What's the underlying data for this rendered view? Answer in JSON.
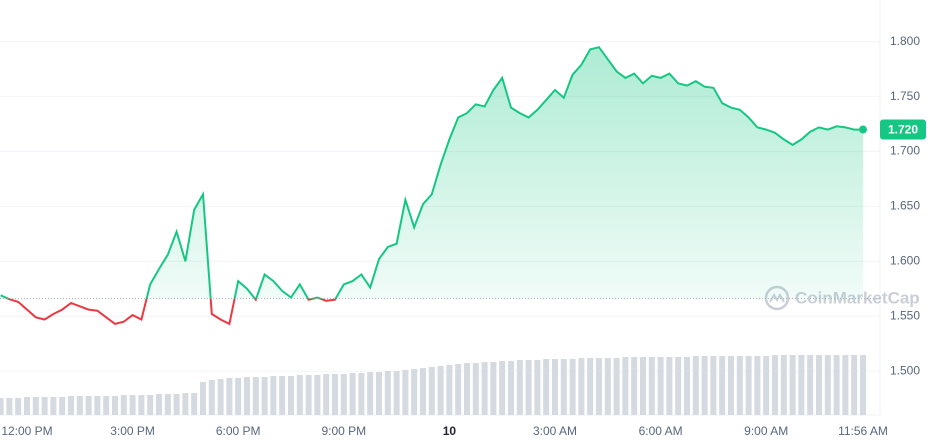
{
  "chart_data": {
    "type": "line",
    "categories": [
      null,
      null,
      null,
      "12:00 PM",
      null,
      null,
      null,
      null,
      null,
      null,
      null,
      null,
      null,
      null,
      null,
      "3:00 PM",
      null,
      null,
      null,
      null,
      null,
      null,
      null,
      null,
      null,
      null,
      null,
      "6:00 PM",
      null,
      null,
      null,
      null,
      null,
      null,
      null,
      null,
      null,
      null,
      null,
      "9:00 PM",
      null,
      null,
      null,
      null,
      null,
      null,
      null,
      null,
      null,
      null,
      null,
      "10",
      null,
      null,
      null,
      null,
      null,
      null,
      null,
      null,
      null,
      null,
      null,
      "3:00 AM",
      null,
      null,
      null,
      null,
      null,
      null,
      null,
      null,
      null,
      null,
      null,
      "6:00 AM",
      null,
      null,
      null,
      null,
      null,
      null,
      null,
      null,
      null,
      null,
      null,
      "9:00 AM",
      null,
      null,
      null,
      null,
      null,
      null,
      null,
      null,
      null,
      null,
      "11:56 AM"
    ],
    "series": [
      {
        "name": "Price",
        "color": "#16c784",
        "below_color": "#ea3943",
        "values": [
          1.569,
          1.5655,
          1.563,
          1.556,
          1.549,
          1.547,
          1.552,
          1.556,
          1.562,
          1.559,
          1.556,
          1.555,
          1.549,
          1.543,
          1.545,
          1.551,
          1.547,
          1.579,
          1.593,
          1.606,
          1.627,
          1.6,
          1.647,
          1.661,
          1.552,
          1.547,
          1.543,
          1.582,
          1.575,
          1.565,
          1.588,
          1.582,
          1.573,
          1.567,
          1.579,
          1.565,
          1.567,
          1.564,
          1.565,
          1.579,
          1.582,
          1.588,
          1.576,
          1.602,
          1.613,
          1.616,
          1.656,
          1.631,
          1.652,
          1.661,
          1.688,
          1.711,
          1.731,
          1.735,
          1.743,
          1.741,
          1.756,
          1.767,
          1.74,
          1.735,
          1.731,
          1.738,
          1.747,
          1.756,
          1.749,
          1.77,
          1.779,
          1.793,
          1.795,
          1.784,
          1.773,
          1.767,
          1.771,
          1.762,
          1.769,
          1.767,
          1.771,
          1.762,
          1.76,
          1.764,
          1.759,
          1.758,
          1.744,
          1.74,
          1.738,
          1.731,
          1.722,
          1.72,
          1.717,
          1.711,
          1.706,
          1.711,
          1.718,
          1.722,
          1.72,
          1.723,
          1.722,
          1.72,
          1.72
        ]
      },
      {
        "name": "Volume",
        "color": "#d5d9e0",
        "axis": "volume",
        "values": [
          17,
          17,
          17,
          18,
          18,
          18,
          18,
          18,
          19,
          19,
          19,
          19,
          19,
          19,
          20,
          20,
          20,
          20,
          21,
          21,
          21,
          22,
          22,
          33,
          35,
          36,
          37,
          37,
          38,
          38,
          38,
          39,
          39,
          39,
          40,
          40,
          40,
          41,
          41,
          41,
          42,
          42,
          43,
          43,
          44,
          44,
          45,
          46,
          47,
          48,
          49,
          50,
          51,
          52,
          52,
          53,
          53,
          54,
          54,
          55,
          55,
          55,
          56,
          56,
          56,
          56,
          57,
          57,
          57,
          57,
          57,
          58,
          58,
          58,
          58,
          58,
          58,
          58,
          58,
          59,
          59,
          59,
          59,
          59,
          59,
          59,
          59,
          59,
          60,
          60,
          60,
          60,
          60,
          60,
          60,
          60,
          60,
          60,
          60
        ]
      }
    ],
    "reference_line": 1.566,
    "current_price": {
      "value": 1.72,
      "label": "1.720"
    },
    "ylim": [
      1.46,
      1.838
    ],
    "yticks": [
      {
        "value": 1.5,
        "label": "1.500"
      },
      {
        "value": 1.55,
        "label": "1.550"
      },
      {
        "value": 1.6,
        "label": "1.600"
      },
      {
        "value": 1.65,
        "label": "1.650"
      },
      {
        "value": 1.7,
        "label": "1.700"
      },
      {
        "value": 1.75,
        "label": "1.750"
      },
      {
        "value": 1.8,
        "label": "1.800"
      }
    ],
    "volume_lim": [
      0,
      100
    ],
    "grid": true,
    "watermark": "CoinMarketCap"
  }
}
